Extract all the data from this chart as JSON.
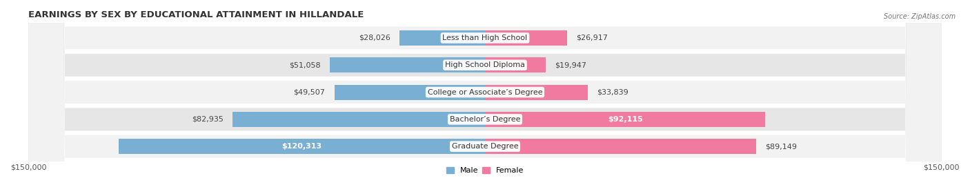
{
  "title": "EARNINGS BY SEX BY EDUCATIONAL ATTAINMENT IN HILLANDALE",
  "source": "Source: ZipAtlas.com",
  "categories": [
    "Less than High School",
    "High School Diploma",
    "College or Associate’s Degree",
    "Bachelor’s Degree",
    "Graduate Degree"
  ],
  "male_values": [
    28026,
    51058,
    49507,
    82935,
    120313
  ],
  "female_values": [
    26917,
    19947,
    33839,
    92115,
    89149
  ],
  "male_labels": [
    "$28,026",
    "$51,058",
    "$49,507",
    "$82,935",
    "$120,313"
  ],
  "female_labels": [
    "$26,917",
    "$19,947",
    "$33,839",
    "$92,115",
    "$89,149"
  ],
  "male_color": "#7aafd4",
  "female_color": "#f07aa0",
  "axis_limit": 150000,
  "xlabel_left": "$150,000",
  "xlabel_right": "$150,000",
  "legend_male": "Male",
  "legend_female": "Female",
  "title_fontsize": 9.5,
  "label_fontsize": 8,
  "category_fontsize": 8,
  "row_colors": [
    "#f2f2f2",
    "#e6e6e6"
  ]
}
